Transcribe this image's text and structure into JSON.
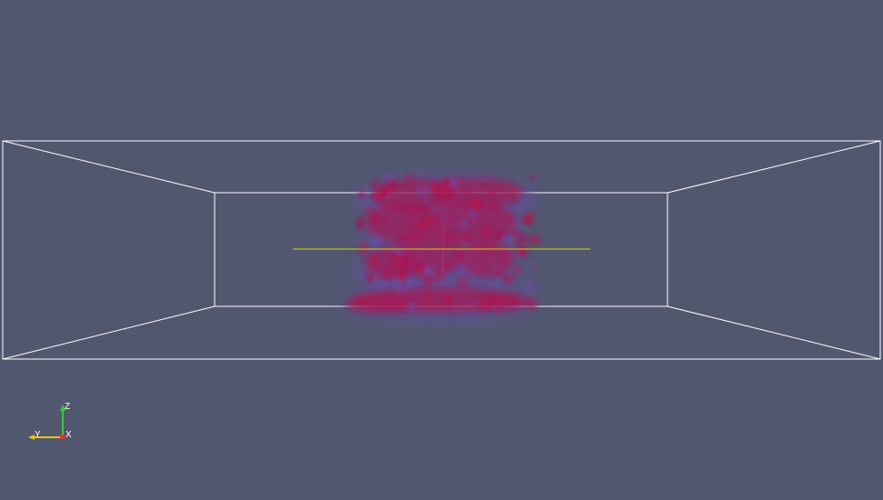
{
  "viewport": {
    "background": "#525770"
  },
  "bounding_box": {
    "color": "#ffffff"
  },
  "volume": {
    "core_color": "#b0104a",
    "halo_color": "#6a4aa8"
  },
  "slice_line": {
    "color": "#d8d800"
  },
  "orientation_axes": {
    "z_label": "Z",
    "y_label": "Y",
    "x_label": "X",
    "z_color": "#33cc33",
    "y_color": "#e6c800",
    "x_color": "#e63333"
  }
}
